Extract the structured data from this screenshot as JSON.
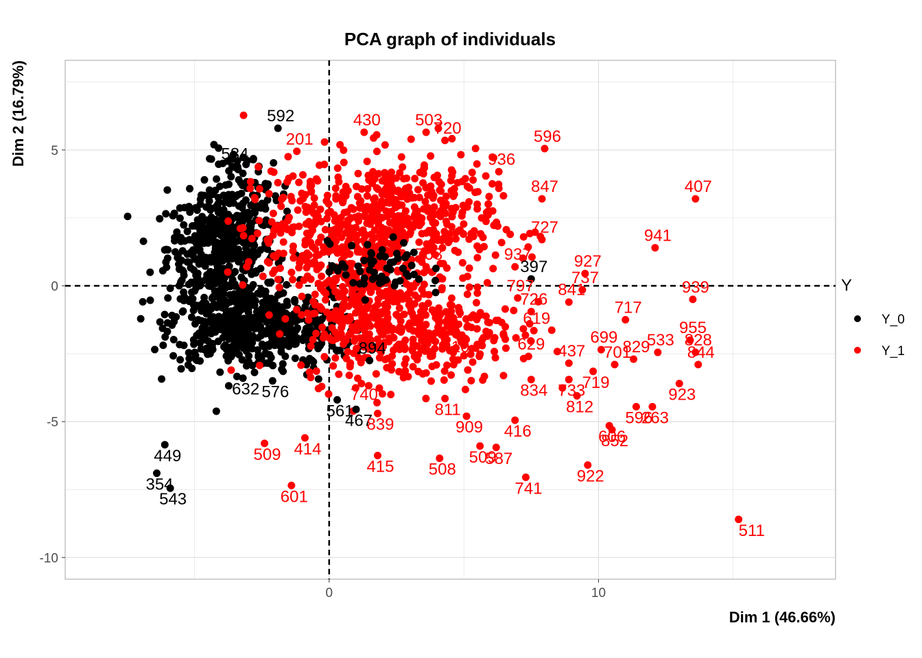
{
  "chart_data": {
    "type": "scatter",
    "title": "PCA graph of individuals",
    "xlabel": "Dim 1 (46.66%)",
    "ylabel": "Dim 2 (16.79%)",
    "xlim": [
      -9.8,
      18.8
    ],
    "ylim": [
      -10.8,
      8.3
    ],
    "x_ticks": [
      0,
      10
    ],
    "x_tick_labels": [
      "0",
      "10"
    ],
    "y_ticks": [
      5,
      0,
      -5,
      -10
    ],
    "y_tick_labels": [
      "5",
      "0",
      "-5",
      "-10"
    ],
    "reference_lines": {
      "x": 0,
      "y": 0,
      "style": "dashed"
    },
    "grid": true,
    "legend": {
      "title": "Y",
      "position": "right"
    },
    "colors": {
      "Y_0": "#000000",
      "Y_1": "#ff0000"
    },
    "series": [
      {
        "name": "Y_0",
        "labeled_points": [
          {
            "label": "449",
            "x": -6.1,
            "y": -5.85
          },
          {
            "label": "354",
            "x": -6.4,
            "y": -6.9
          },
          {
            "label": "543",
            "x": -5.9,
            "y": -7.45
          },
          {
            "label": "397",
            "x": 7.5,
            "y": 0.25
          },
          {
            "label": "561",
            "x": 0.3,
            "y": -4.2
          },
          {
            "label": "467",
            "x": 1.0,
            "y": -4.55
          },
          {
            "label": "592",
            "x": -1.9,
            "y": 5.8
          },
          {
            "label": "584",
            "x": -3.6,
            "y": 4.4
          },
          {
            "label": "632",
            "x": -3.2,
            "y": -3.4
          },
          {
            "label": "576",
            "x": -2.1,
            "y": -3.5
          },
          {
            "label": "894",
            "x": 1.5,
            "y": -2.75
          }
        ]
      },
      {
        "name": "Y_1",
        "labeled_points": [
          {
            "label": "511",
            "x": 15.2,
            "y": -8.6
          },
          {
            "label": "407",
            "x": 13.6,
            "y": 3.2
          },
          {
            "label": "941",
            "x": 12.1,
            "y": 1.4
          },
          {
            "label": "596",
            "x": 8.0,
            "y": 5.05
          },
          {
            "label": "927",
            "x": 9.5,
            "y": 0.45
          },
          {
            "label": "939",
            "x": 13.5,
            "y": -0.5
          },
          {
            "label": "737",
            "x": 9.4,
            "y": -0.15
          },
          {
            "label": "841",
            "x": 8.9,
            "y": -0.6
          },
          {
            "label": "717",
            "x": 11.0,
            "y": -1.25
          },
          {
            "label": "955",
            "x": 13.4,
            "y": -2.0
          },
          {
            "label": "828",
            "x": 13.6,
            "y": -2.45
          },
          {
            "label": "844",
            "x": 13.7,
            "y": -2.9
          },
          {
            "label": "533",
            "x": 12.2,
            "y": -2.45
          },
          {
            "label": "923",
            "x": 13.0,
            "y": -3.6
          },
          {
            "label": "829",
            "x": 11.3,
            "y": -2.7
          },
          {
            "label": "701",
            "x": 10.6,
            "y": -2.9
          },
          {
            "label": "699",
            "x": 10.1,
            "y": -2.35
          },
          {
            "label": "719",
            "x": 9.8,
            "y": -3.15
          },
          {
            "label": "437",
            "x": 8.9,
            "y": -2.85
          },
          {
            "label": "733",
            "x": 8.9,
            "y": -3.45
          },
          {
            "label": "812",
            "x": 9.2,
            "y": -4.05
          },
          {
            "label": "834",
            "x": 7.5,
            "y": -3.45
          },
          {
            "label": "629",
            "x": 7.4,
            "y": -2.6
          },
          {
            "label": "619",
            "x": 7.6,
            "y": -1.65
          },
          {
            "label": "726",
            "x": 7.5,
            "y": -0.95
          },
          {
            "label": "797",
            "x": 7.0,
            "y": -0.45
          },
          {
            "label": "937",
            "x": 6.9,
            "y": 0.7
          },
          {
            "label": "727",
            "x": 7.9,
            "y": 1.7
          },
          {
            "label": "847",
            "x": 7.9,
            "y": 3.2
          },
          {
            "label": "936",
            "x": 6.3,
            "y": 4.2
          },
          {
            "label": "720",
            "x": 4.3,
            "y": 5.35
          },
          {
            "label": "503",
            "x": 3.6,
            "y": 5.65
          },
          {
            "label": "430",
            "x": 1.3,
            "y": 5.65
          },
          {
            "label": "201",
            "x": -1.2,
            "y": 4.95
          },
          {
            "label": "414",
            "x": -0.9,
            "y": -5.6
          },
          {
            "label": "509",
            "x": -2.4,
            "y": -5.8
          },
          {
            "label": "601",
            "x": -1.4,
            "y": -7.35
          },
          {
            "label": "415",
            "x": 1.8,
            "y": -6.25
          },
          {
            "label": "839",
            "x": 1.8,
            "y": -4.7
          },
          {
            "label": "508",
            "x": 4.1,
            "y": -6.35
          },
          {
            "label": "509",
            "x": 5.6,
            "y": -5.9
          },
          {
            "label": "587",
            "x": 6.2,
            "y": -5.95
          },
          {
            "label": "741",
            "x": 7.3,
            "y": -7.05
          },
          {
            "label": "922",
            "x": 9.6,
            "y": -6.6
          },
          {
            "label": "909",
            "x": 5.1,
            "y": -4.8
          },
          {
            "label": "811",
            "x": 4.3,
            "y": -4.15
          },
          {
            "label": "416",
            "x": 6.9,
            "y": -4.95
          },
          {
            "label": "606",
            "x": 10.4,
            "y": -5.15
          },
          {
            "label": "852",
            "x": 10.5,
            "y": -5.3
          },
          {
            "label": "596",
            "x": 11.4,
            "y": -4.45
          },
          {
            "label": "263",
            "x": 12.0,
            "y": -4.45
          },
          {
            "label": "740",
            "x": 1.2,
            "y": -3.6
          },
          {
            "label": "410",
            "x": 4.6,
            "y": -2.7
          },
          {
            "label": "351",
            "x": 4.7,
            "y": -1.8
          },
          {
            "label": "763",
            "x": 3.6,
            "y": 0.7
          }
        ]
      }
    ]
  }
}
